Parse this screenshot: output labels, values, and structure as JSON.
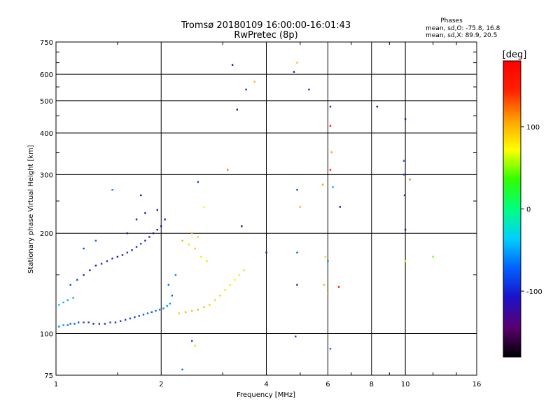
{
  "chart_data": {
    "type": "scatter",
    "title": "Tromsø 20180109 16:00:00-16:01:43",
    "subtitle": "RwPretec (8p)",
    "xlabel": "Frequency [MHz]",
    "ylabel": "Stationary phase Virtual Height [km]",
    "x_scale": "log",
    "y_scale": "log",
    "xlim": [
      1,
      16
    ],
    "ylim": [
      75,
      750
    ],
    "x_ticks": [
      1,
      2,
      4,
      6,
      8,
      10,
      16
    ],
    "y_ticks": [
      75,
      100,
      200,
      300,
      400,
      500,
      600,
      750
    ],
    "grid": true,
    "stats": {
      "heading": "Phases",
      "line_o": "mean, sd,O: -75.8, 16.8",
      "line_x": "mean, sd,X:  89.9, 20.5"
    },
    "colorbar": {
      "label": "[deg]",
      "range": [
        -180,
        180
      ],
      "ticks": [
        100,
        0,
        -100
      ],
      "tick_labels": [
        "100",
        "0",
        "-100"
      ],
      "colors": [
        "#000000",
        "#5a0070",
        "#1d10c8",
        "#0060ff",
        "#00d0ff",
        "#00ff80",
        "#30ff00",
        "#ffff00",
        "#ffa000",
        "#ff2000",
        "#ff0000"
      ]
    },
    "series": [
      {
        "trace": "o-lower",
        "points": [
          [
            1.02,
            105,
            -62
          ],
          [
            1.05,
            106,
            -58
          ],
          [
            1.08,
            106,
            -65
          ],
          [
            1.1,
            107,
            -70
          ],
          [
            1.13,
            107,
            -78
          ],
          [
            1.16,
            108,
            -82
          ],
          [
            1.2,
            108,
            -90
          ],
          [
            1.24,
            108,
            -95
          ],
          [
            1.28,
            107,
            -100
          ],
          [
            1.33,
            107,
            -98
          ],
          [
            1.38,
            107,
            -92
          ],
          [
            1.43,
            108,
            -88
          ],
          [
            1.48,
            108,
            -96
          ],
          [
            1.53,
            109,
            -94
          ],
          [
            1.58,
            110,
            -90
          ],
          [
            1.63,
            111,
            -86
          ],
          [
            1.68,
            112,
            -84
          ],
          [
            1.73,
            113,
            -80
          ],
          [
            1.78,
            114,
            -76
          ],
          [
            1.83,
            115,
            -72
          ],
          [
            1.88,
            116,
            -70
          ],
          [
            1.93,
            117,
            -68
          ],
          [
            1.98,
            118,
            -66
          ],
          [
            2.03,
            119,
            -60
          ],
          [
            2.08,
            121,
            -55
          ],
          [
            2.12,
            123,
            -50
          ]
        ]
      },
      {
        "trace": "o-upper",
        "points": [
          [
            1.02,
            122,
            -40
          ],
          [
            1.05,
            124,
            -45
          ],
          [
            1.08,
            126,
            -50
          ],
          [
            1.12,
            128,
            -48
          ],
          [
            1.1,
            140,
            -80
          ],
          [
            1.15,
            145,
            -85
          ],
          [
            1.2,
            150,
            -95
          ],
          [
            1.25,
            155,
            -100
          ],
          [
            1.3,
            160,
            -105
          ],
          [
            1.35,
            162,
            -95
          ],
          [
            1.4,
            165,
            -90
          ],
          [
            1.45,
            168,
            -100
          ],
          [
            1.5,
            170,
            -110
          ],
          [
            1.55,
            172,
            -105
          ],
          [
            1.6,
            175,
            -95
          ],
          [
            1.65,
            178,
            -100
          ],
          [
            1.7,
            182,
            -90
          ],
          [
            1.75,
            186,
            -85
          ],
          [
            1.8,
            190,
            -95
          ],
          [
            1.85,
            195,
            -100
          ],
          [
            1.9,
            200,
            -110
          ],
          [
            1.95,
            205,
            -120
          ],
          [
            2.0,
            210,
            -115
          ],
          [
            2.05,
            220,
            -110
          ],
          [
            1.6,
            200,
            -120
          ],
          [
            1.7,
            220,
            -130
          ],
          [
            1.8,
            230,
            -125
          ],
          [
            1.3,
            190,
            -70
          ],
          [
            1.2,
            180,
            -90
          ],
          [
            2.1,
            140,
            -70
          ],
          [
            2.15,
            130,
            -75
          ],
          [
            2.2,
            150,
            -60
          ]
        ]
      },
      {
        "trace": "x-lower",
        "points": [
          [
            2.25,
            115,
            95
          ],
          [
            2.35,
            116,
            100
          ],
          [
            2.45,
            117,
            98
          ],
          [
            2.55,
            118,
            102
          ],
          [
            2.65,
            120,
            96
          ],
          [
            2.75,
            122,
            92
          ],
          [
            2.85,
            126,
            88
          ],
          [
            2.95,
            130,
            90
          ],
          [
            3.05,
            135,
            85
          ],
          [
            3.15,
            140,
            80
          ],
          [
            3.25,
            145,
            70
          ],
          [
            3.35,
            150,
            65
          ],
          [
            3.45,
            155,
            60
          ]
        ]
      },
      {
        "trace": "x-upper",
        "points": [
          [
            2.3,
            190,
            100
          ],
          [
            2.4,
            185,
            90
          ],
          [
            2.5,
            180,
            95
          ],
          [
            2.6,
            170,
            80
          ],
          [
            2.7,
            165,
            60
          ],
          [
            2.45,
            200,
            105
          ],
          [
            2.55,
            195,
            90
          ],
          [
            2.65,
            240,
            70
          ]
        ]
      },
      {
        "trace": "scattered",
        "points": [
          [
            1.45,
            270,
            -60
          ],
          [
            1.75,
            260,
            -140
          ],
          [
            1.95,
            235,
            -120
          ],
          [
            2.55,
            285,
            -90
          ],
          [
            3.2,
            640,
            -110
          ],
          [
            3.3,
            470,
            -140
          ],
          [
            3.5,
            540,
            -100
          ],
          [
            3.7,
            570,
            100
          ],
          [
            3.4,
            210,
            -150
          ],
          [
            3.1,
            310,
            120
          ],
          [
            4.0,
            175,
            -130
          ],
          [
            4.9,
            650,
            100
          ],
          [
            4.8,
            610,
            -110
          ],
          [
            5.3,
            540,
            -120
          ],
          [
            6.1,
            480,
            -100
          ],
          [
            6.1,
            420,
            150
          ],
          [
            6.15,
            350,
            110
          ],
          [
            6.1,
            310,
            160
          ],
          [
            6.2,
            275,
            -50
          ],
          [
            6.5,
            240,
            -110
          ],
          [
            5.8,
            280,
            110
          ],
          [
            4.9,
            270,
            -80
          ],
          [
            5.0,
            240,
            100
          ],
          [
            5.9,
            170,
            90
          ],
          [
            6.0,
            165,
            -60
          ],
          [
            5.85,
            140,
            100
          ],
          [
            6.0,
            132,
            110
          ],
          [
            6.45,
            138,
            160
          ],
          [
            6.1,
            90,
            -70
          ],
          [
            8.3,
            480,
            -110
          ],
          [
            9.9,
            330,
            -70
          ],
          [
            9.9,
            300,
            -90
          ],
          [
            9.95,
            260,
            -100
          ],
          [
            10.3,
            290,
            120
          ],
          [
            10.0,
            440,
            -140
          ],
          [
            10.0,
            205,
            -110
          ],
          [
            10.0,
            165,
            80
          ],
          [
            12.0,
            170,
            50
          ],
          [
            4.9,
            140,
            -100
          ],
          [
            4.9,
            175,
            -80
          ],
          [
            2.45,
            95,
            -80
          ],
          [
            2.5,
            92,
            90
          ],
          [
            2.3,
            78,
            -70
          ],
          [
            4.85,
            98,
            -90
          ]
        ]
      }
    ]
  }
}
